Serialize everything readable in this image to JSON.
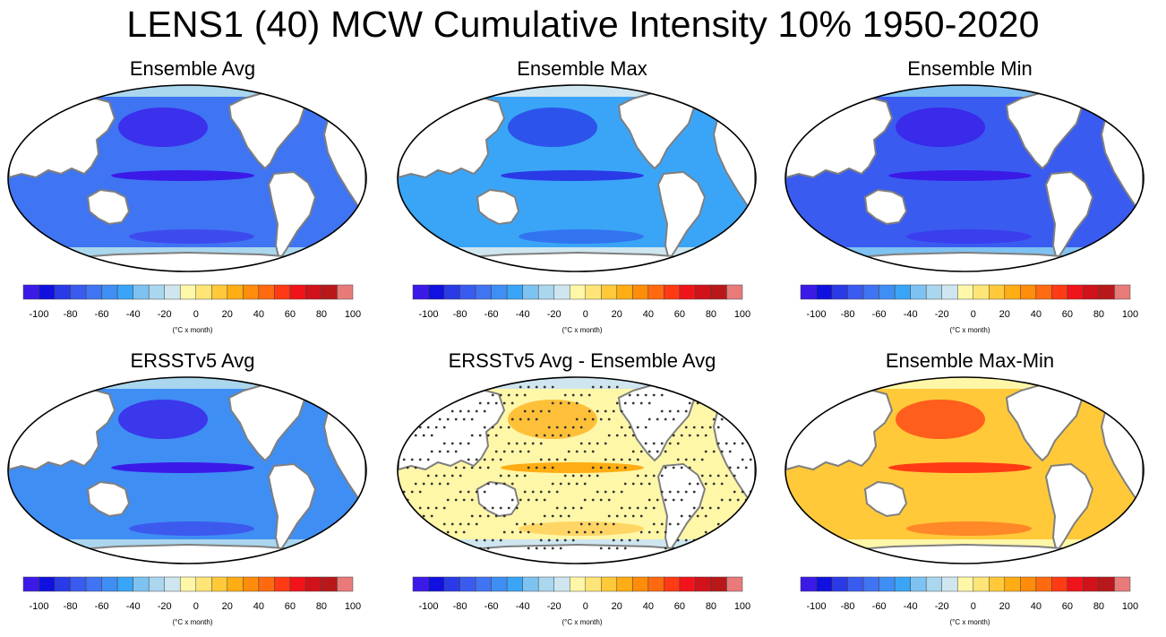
{
  "figure": {
    "title": "LENS1 (40) MCW Cumulative Intensity 10% 1950-2020"
  },
  "colorbar": {
    "tick_labels": [
      "-100",
      "-80",
      "-60",
      "-40",
      "-20",
      "0",
      "20",
      "40",
      "60",
      "80",
      "100"
    ],
    "units": "(°C x month)",
    "colors": [
      "#3b1ae8",
      "#1010e0",
      "#2a3ae6",
      "#3a5bf0",
      "#3f74f2",
      "#3f8ef4",
      "#3aa5f7",
      "#7ec2f2",
      "#aad6ee",
      "#cfe6f0",
      "#fff7a8",
      "#ffe577",
      "#ffc93a",
      "#ffad14",
      "#ff8c0a",
      "#ff6a10",
      "#ff3a14",
      "#f0141a",
      "#d0121a",
      "#b8181a",
      "#e87a7a"
    ]
  },
  "panels": [
    {
      "title": "Ensemble Avg",
      "ocean": "#3f74f2",
      "band": "#3b1ae8",
      "polar": "#aad6ee",
      "stipple": false
    },
    {
      "title": "Ensemble Max",
      "ocean": "#3aa5f7",
      "band": "#2a3ae6",
      "polar": "#cfe6f0",
      "stipple": false
    },
    {
      "title": "Ensemble Min",
      "ocean": "#3a5bf0",
      "band": "#3b1ae8",
      "polar": "#7ec2f2",
      "stipple": false
    },
    {
      "title": "ERSSTv5 Avg",
      "ocean": "#3f8ef4",
      "band": "#3b1ae8",
      "polar": "#aad6ee",
      "stipple": false
    },
    {
      "title": "ERSSTv5 Avg - Ensemble Avg",
      "ocean": "#fff7a8",
      "band": "#ffad14",
      "polar": "#cfe6f0",
      "stipple": true
    },
    {
      "title": "Ensemble Max-Min",
      "ocean": "#ffc93a",
      "band": "#ff3a14",
      "polar": "#fff7a8",
      "stipple": false
    }
  ]
}
